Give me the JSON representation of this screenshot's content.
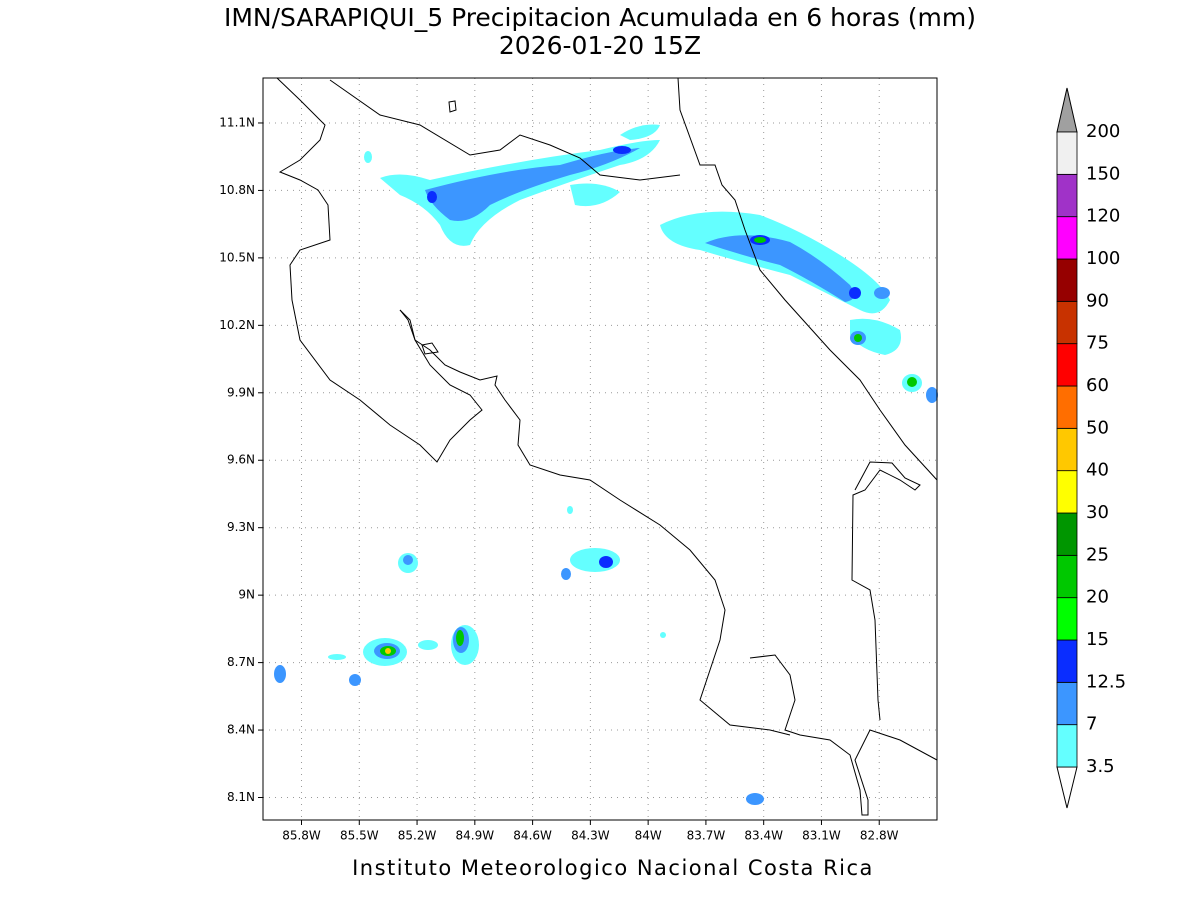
{
  "title": "IMN/SARAPIQUI_5 Precipitacion Acumulada en 6 horas (mm)",
  "subtitle": "2026-01-20 15Z",
  "footer": "Instituto Meteorologico Nacional Costa Rica",
  "map": {
    "xlim": [
      -86.0,
      -82.5
    ],
    "ylim": [
      8.0,
      11.3
    ],
    "grid": true,
    "xticks": [
      {
        "value": -85.8,
        "label": "85.8W"
      },
      {
        "value": -85.5,
        "label": "85.5W"
      },
      {
        "value": -85.2,
        "label": "85.2W"
      },
      {
        "value": -84.9,
        "label": "84.9W"
      },
      {
        "value": -84.6,
        "label": "84.6W"
      },
      {
        "value": -84.3,
        "label": "84.3W"
      },
      {
        "value": -84.0,
        "label": "84W"
      },
      {
        "value": -83.7,
        "label": "83.7W"
      },
      {
        "value": -83.4,
        "label": "83.4W"
      },
      {
        "value": -83.1,
        "label": "83.1W"
      },
      {
        "value": -82.8,
        "label": "82.8W"
      }
    ],
    "yticks": [
      {
        "value": 8.1,
        "label": "8.1N"
      },
      {
        "value": 8.4,
        "label": "8.4N"
      },
      {
        "value": 8.7,
        "label": "8.7N"
      },
      {
        "value": 9.0,
        "label": "9N"
      },
      {
        "value": 9.3,
        "label": "9.3N"
      },
      {
        "value": 9.6,
        "label": "9.6N"
      },
      {
        "value": 9.9,
        "label": "9.9N"
      },
      {
        "value": 10.2,
        "label": "10.2N"
      },
      {
        "value": 10.5,
        "label": "10.5N"
      },
      {
        "value": 10.8,
        "label": "10.8N"
      },
      {
        "value": 11.1,
        "label": "11.1N"
      }
    ]
  },
  "colorbar": {
    "levels": [
      3.5,
      7,
      12.5,
      15,
      20,
      25,
      30,
      40,
      50,
      60,
      75,
      90,
      100,
      120,
      150,
      200
    ],
    "colors": [
      "#64ffff",
      "#3c96ff",
      "#0a2dff",
      "#00ff00",
      "#00c800",
      "#009600",
      "#ffff00",
      "#ffc800",
      "#ff6e00",
      "#ff0000",
      "#c83200",
      "#960000",
      "#ff00ff",
      "#a032c8",
      "#f0f0f0"
    ],
    "under_color": "#ffffff",
    "over_color": "#a0a0a0"
  }
}
